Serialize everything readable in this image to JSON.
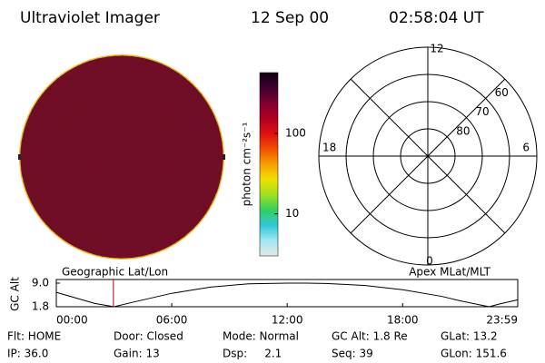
{
  "header": {
    "instrument": "Ultraviolet Imager",
    "date": "12 Sep 00",
    "time": "02:58:04 UT"
  },
  "colorbar": {
    "label": "photon cm⁻²s⁻¹",
    "log": true,
    "lim": [
      3,
      570
    ],
    "ticks": [
      10,
      100
    ],
    "colors": [
      "#e8e8e8",
      "#a0e8f0",
      "#30c8d8",
      "#30d060",
      "#a0e020",
      "#f0e000",
      "#f8a000",
      "#f05000",
      "#e01010",
      "#b00020",
      "#800030",
      "#400030",
      "#100010"
    ]
  },
  "polar": {
    "mlt_labels": [
      "12",
      "6",
      "0",
      "18"
    ],
    "mlat_rings": [
      60,
      70,
      80
    ]
  },
  "altitude_plot": {
    "left_label": "Geographic Lat/Lon",
    "right_label": "Apex MLat/MLT",
    "ylabel": "GC Alt",
    "ylim": [
      1.8,
      9.0
    ],
    "yticks": [
      1.8,
      {
        "value": 9,
        "label": "9.0"
      }
    ],
    "xlim": [
      0,
      23.983
    ],
    "xticks": [
      {
        "value": 0,
        "label": "00:00"
      },
      {
        "value": 6,
        "label": "06:00"
      },
      {
        "value": 12,
        "label": "12:00"
      },
      {
        "value": 18,
        "label": "18:00"
      },
      {
        "value": 23.983,
        "label": "23:59"
      }
    ],
    "x": [
      0,
      1,
      2,
      3,
      4,
      6,
      8,
      10,
      12,
      13,
      14,
      16,
      18,
      20,
      21,
      22,
      22.5,
      23,
      23.983
    ],
    "y": [
      6.2,
      4.5,
      2.8,
      1.8,
      3.2,
      5.9,
      7.8,
      8.8,
      9.0,
      9.0,
      8.9,
      8.3,
      7.0,
      5.0,
      3.6,
      2.4,
      1.8,
      2.6,
      3.9
    ],
    "current_time": 2.967,
    "color": "#000000",
    "marker_color": "#c00000"
  },
  "status": [
    [
      "Flt: HOME",
      "Door: Closed",
      "Mode: Normal",
      "GC Alt: 1.8 Re",
      "GLat: 13.2"
    ],
    [
      "IP: 36.0",
      "Gain: 13",
      "Dsp:     2.1",
      "Seq: 39",
      "GLon: 151.6"
    ]
  ]
}
